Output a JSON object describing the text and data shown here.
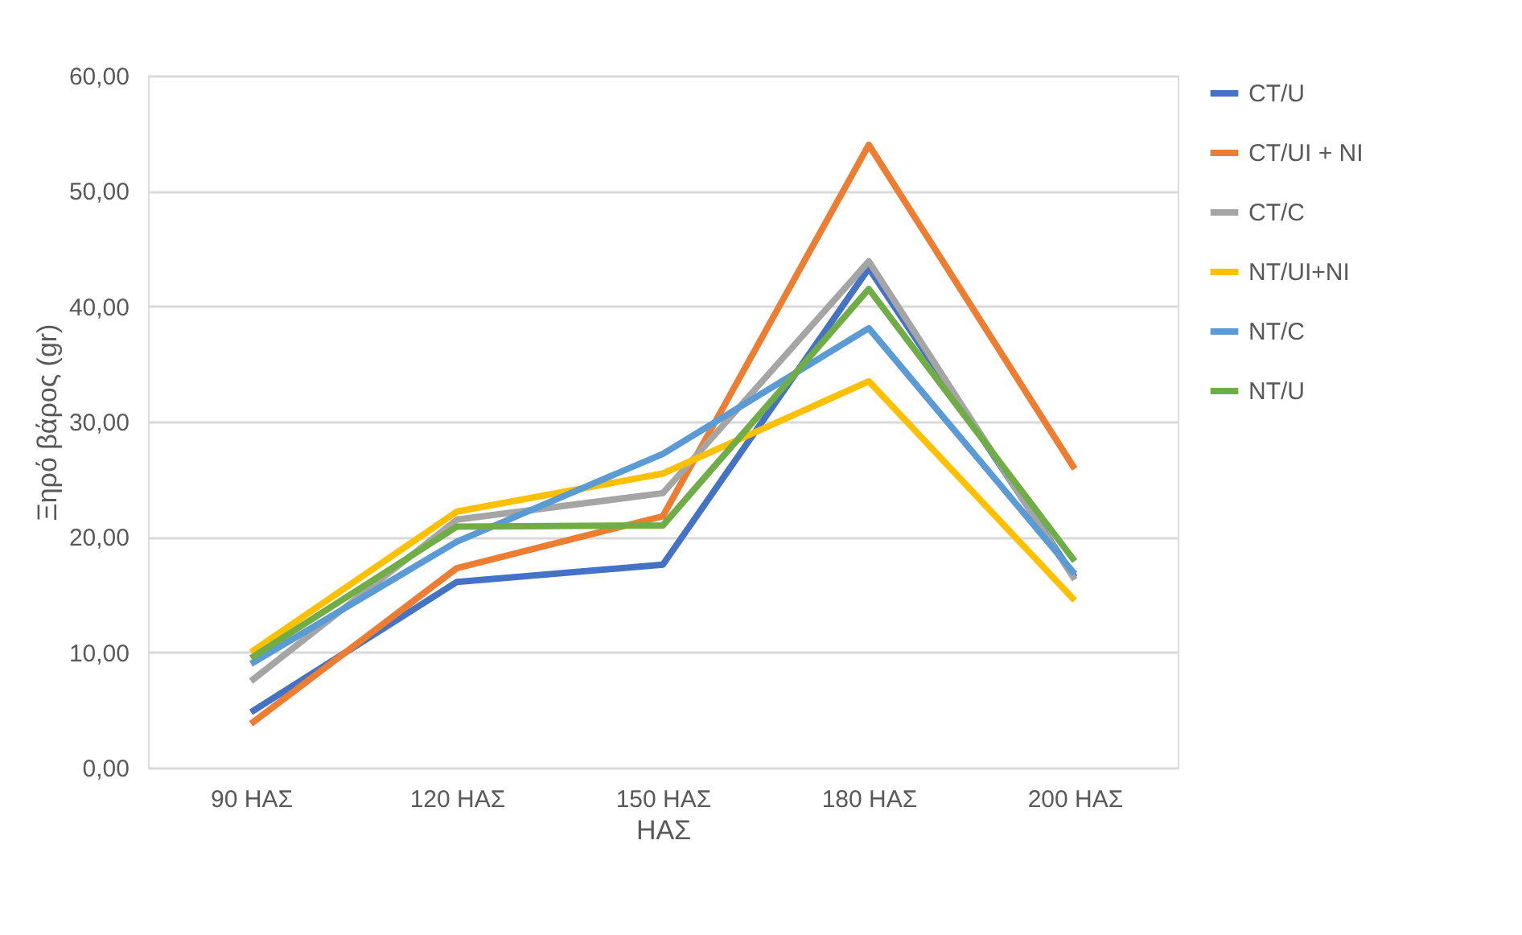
{
  "chart_data": {
    "type": "line",
    "xlabel": "ΗΑΣ",
    "ylabel": "Ξηρό βάρος (gr)",
    "categories": [
      "90 ΗΑΣ",
      "120 ΗΑΣ",
      "150 ΗΑΣ",
      "180 ΗΑΣ",
      "200 ΗΑΣ"
    ],
    "series": [
      {
        "name": "CT/U",
        "color": "#4472c4",
        "values": [
          4.8,
          16.1,
          17.6,
          43.3,
          16.5
        ]
      },
      {
        "name": "CT/UI + NI",
        "color": "#ed7d31",
        "values": [
          3.8,
          17.3,
          21.8,
          54.0,
          25.9
        ]
      },
      {
        "name": "CT/C",
        "color": "#a5a5a5",
        "values": [
          7.5,
          21.5,
          23.8,
          43.9,
          16.3
        ]
      },
      {
        "name": "NT/UI+NI",
        "color": "#ffc000",
        "values": [
          10.0,
          22.2,
          25.5,
          33.5,
          14.5
        ]
      },
      {
        "name": "NT/C",
        "color": "#5b9bd5",
        "values": [
          9.0,
          19.6,
          27.2,
          38.1,
          16.8
        ]
      },
      {
        "name": "NT/U",
        "color": "#70ad47",
        "values": [
          9.5,
          20.9,
          21.0,
          41.5,
          17.9
        ]
      }
    ],
    "ylim": [
      0,
      60
    ],
    "yticks": [
      {
        "value": 0,
        "label": "0,00"
      },
      {
        "value": 10,
        "label": "10,00"
      },
      {
        "value": 20,
        "label": "20,00"
      },
      {
        "value": 30,
        "label": "30,00"
      },
      {
        "value": 40,
        "label": "40,00"
      },
      {
        "value": 50,
        "label": "50,00"
      },
      {
        "value": 60,
        "label": "60,00"
      }
    ],
    "grid": "y",
    "legend": "right",
    "marker": "none",
    "line_style": "solid"
  }
}
